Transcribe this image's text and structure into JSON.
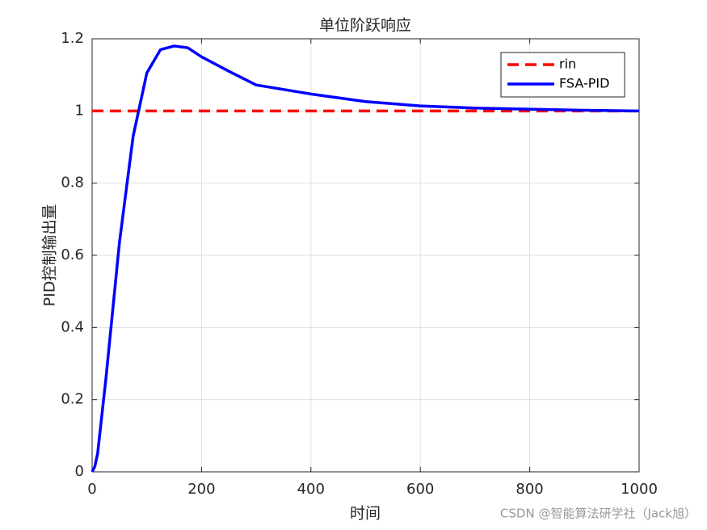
{
  "chart_data": {
    "type": "line",
    "title": "单位阶跃响应",
    "x_label": "时间",
    "y_label": "PID控制输出量",
    "xlim": [
      0,
      1000
    ],
    "ylim": [
      0,
      1.2
    ],
    "xticks": [
      0,
      200,
      400,
      600,
      800,
      1000
    ],
    "yticks": [
      0,
      0.2,
      0.4,
      0.6,
      0.8,
      1,
      1.2
    ],
    "grid": true,
    "legend_position": "upper-right",
    "series": [
      {
        "name": "rin",
        "color": "#ff0000",
        "line_style": "dashed",
        "x": [
          0,
          1000
        ],
        "values": [
          1,
          1
        ]
      },
      {
        "name": "FSA-PID",
        "color": "#0000ff",
        "line_style": "solid",
        "x": [
          0,
          5,
          10,
          25,
          50,
          75,
          100,
          125,
          150,
          175,
          200,
          250,
          300,
          400,
          500,
          600,
          700,
          800,
          900,
          1000
        ],
        "values": [
          0,
          0.015,
          0.05,
          0.255,
          0.636,
          0.93,
          1.105,
          1.17,
          1.18,
          1.175,
          1.15,
          1.11,
          1.072,
          1.047,
          1.026,
          1.014,
          1.008,
          1.005,
          1.002,
          1.0
        ]
      }
    ],
    "annotation": "CSDN @智能算法研学社（Jack旭）"
  }
}
